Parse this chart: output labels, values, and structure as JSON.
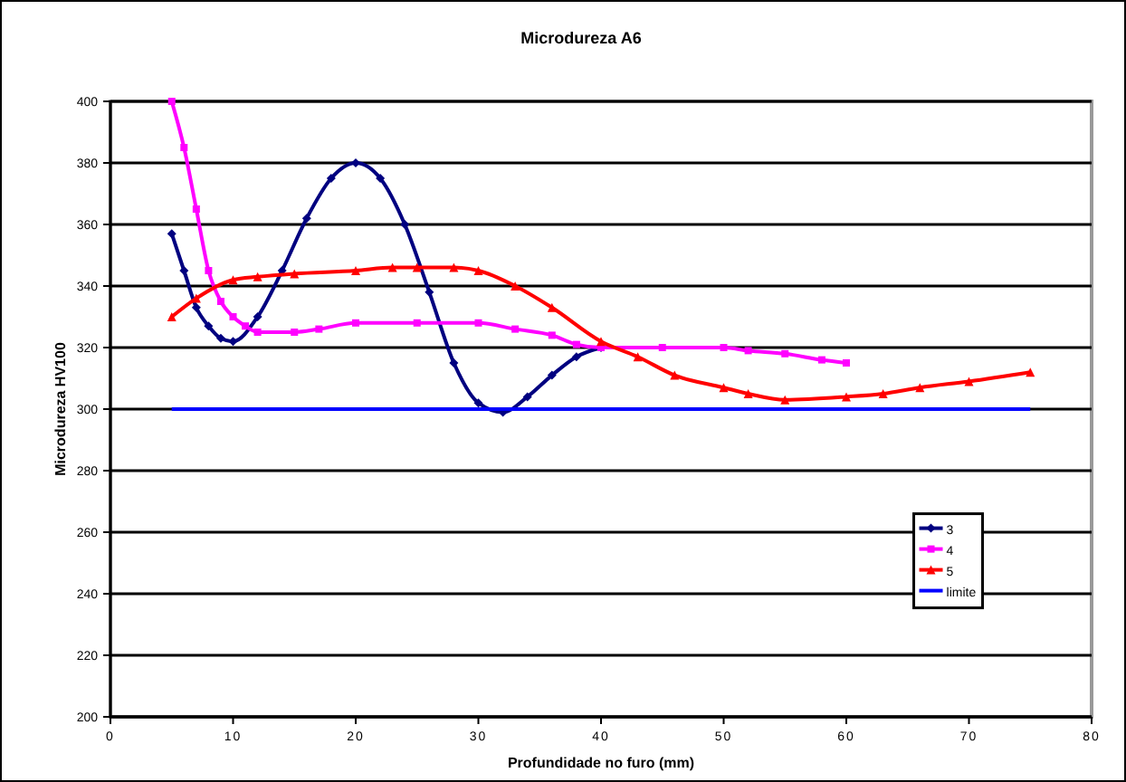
{
  "chart_data": {
    "type": "line",
    "title": "Microdureza A6",
    "xlabel": "Profundidade no furo (mm)",
    "ylabel": "Microdureza HV100",
    "xlim": [
      0,
      80
    ],
    "xticks": [
      0,
      10,
      20,
      30,
      40,
      50,
      60,
      70,
      80
    ],
    "ylim": [
      200,
      400
    ],
    "yticks": [
      200,
      220,
      240,
      260,
      280,
      300,
      320,
      340,
      360,
      380,
      400
    ],
    "grid": "y",
    "legend": "bottom right",
    "series": [
      {
        "name": "3",
        "color": "#000080",
        "marker": "diamond",
        "x": [
          5,
          6,
          7,
          8,
          9,
          10,
          12,
          14,
          16,
          18,
          20,
          22,
          24,
          26,
          28,
          30,
          32,
          34,
          36,
          38,
          40
        ],
        "values": [
          357,
          345,
          333,
          327,
          323,
          322,
          330,
          345,
          362,
          375,
          380,
          375,
          360,
          338,
          315,
          302,
          299,
          304,
          311,
          317,
          320
        ]
      },
      {
        "name": "4",
        "color": "#ff00ff",
        "marker": "square",
        "x": [
          5,
          6,
          7,
          8,
          9,
          10,
          11,
          12,
          15,
          17,
          20,
          25,
          30,
          33,
          36,
          38,
          40,
          45,
          50,
          52,
          55,
          58,
          60
        ],
        "values": [
          400,
          385,
          365,
          345,
          335,
          330,
          327,
          325,
          325,
          326,
          328,
          328,
          328,
          326,
          324,
          321,
          320,
          320,
          320,
          319,
          318,
          316,
          315
        ]
      },
      {
        "name": "5",
        "color": "#ff0000",
        "marker": "triangle",
        "x": [
          5,
          7,
          10,
          12,
          15,
          20,
          23,
          25,
          28,
          30,
          33,
          36,
          40,
          43,
          46,
          50,
          52,
          55,
          60,
          63,
          66,
          70,
          75
        ],
        "values": [
          330,
          336,
          342,
          343,
          344,
          345,
          346,
          346,
          346,
          345,
          340,
          333,
          322,
          317,
          311,
          307,
          305,
          303,
          304,
          305,
          307,
          309,
          312
        ]
      },
      {
        "name": "limite",
        "color": "#0000ff",
        "marker": "none",
        "x": [
          5,
          75
        ],
        "values": [
          300,
          300
        ]
      }
    ]
  }
}
